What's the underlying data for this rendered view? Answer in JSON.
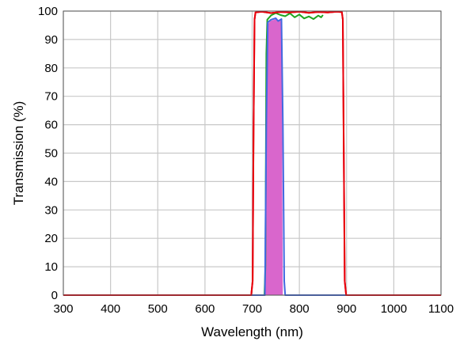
{
  "chart_data": {
    "type": "line",
    "title": "",
    "xlabel": "Wavelength (nm)",
    "ylabel": "Transmission (%)",
    "xlim": [
      300,
      1100
    ],
    "ylim": [
      0,
      100
    ],
    "xticks": [
      300,
      400,
      500,
      600,
      700,
      800,
      900,
      1000,
      1100
    ],
    "yticks": [
      0,
      10,
      20,
      30,
      40,
      50,
      60,
      70,
      80,
      90,
      100
    ],
    "xtick_labels": [
      "300",
      "400",
      "500",
      "600",
      "700",
      "800",
      "900",
      "1000",
      "1100"
    ],
    "ytick_labels": [
      "0",
      "10",
      "20",
      "30",
      "40",
      "50",
      "60",
      "70",
      "80",
      "90",
      "100"
    ],
    "grid": true,
    "legend": "none",
    "series": [
      {
        "color": "#e8000b",
        "fill": false,
        "points": [
          [
            300,
            0
          ],
          [
            698,
            0
          ],
          [
            701,
            5
          ],
          [
            703,
            60
          ],
          [
            705,
            97
          ],
          [
            707,
            99.5
          ],
          [
            720,
            99.8
          ],
          [
            740,
            99.3
          ],
          [
            760,
            99.7
          ],
          [
            780,
            99.5
          ],
          [
            800,
            99.8
          ],
          [
            820,
            99.4
          ],
          [
            840,
            99.7
          ],
          [
            860,
            99.5
          ],
          [
            880,
            99.8
          ],
          [
            890,
            99.6
          ],
          [
            892,
            97
          ],
          [
            894,
            50
          ],
          [
            896,
            5
          ],
          [
            899,
            0
          ],
          [
            1100,
            0
          ]
        ]
      },
      {
        "color": "#1fa51f",
        "fill": false,
        "points": [
          [
            300,
            0
          ],
          [
            726,
            0
          ],
          [
            728,
            10
          ],
          [
            730,
            85
          ],
          [
            732,
            97
          ],
          [
            740,
            98.5
          ],
          [
            750,
            99.3
          ],
          [
            760,
            98.6
          ],
          [
            770,
            98.2
          ],
          [
            780,
            99.2
          ],
          [
            790,
            97.8
          ],
          [
            800,
            98.8
          ],
          [
            810,
            97.4
          ],
          [
            820,
            98.1
          ],
          [
            830,
            97.2
          ],
          [
            840,
            98.4
          ],
          [
            846,
            97.8
          ],
          [
            850,
            98.6
          ]
        ]
      },
      {
        "color": "#4169e1",
        "fill": false,
        "points": [
          [
            300,
            0
          ],
          [
            727,
            0
          ],
          [
            730,
            60
          ],
          [
            733,
            96
          ],
          [
            740,
            97
          ],
          [
            750,
            97.5
          ],
          [
            755,
            96.5
          ],
          [
            762,
            97.2
          ],
          [
            765,
            60
          ],
          [
            768,
            5
          ],
          [
            770,
            0
          ],
          [
            1100,
            0
          ]
        ]
      },
      {
        "color": "#d966cc",
        "fill": true,
        "points": [
          [
            728,
            0
          ],
          [
            730,
            80
          ],
          [
            732,
            95
          ],
          [
            740,
            96.5
          ],
          [
            750,
            97
          ],
          [
            760,
            96.5
          ],
          [
            762,
            95
          ],
          [
            763,
            40
          ],
          [
            764,
            0
          ]
        ]
      }
    ]
  }
}
